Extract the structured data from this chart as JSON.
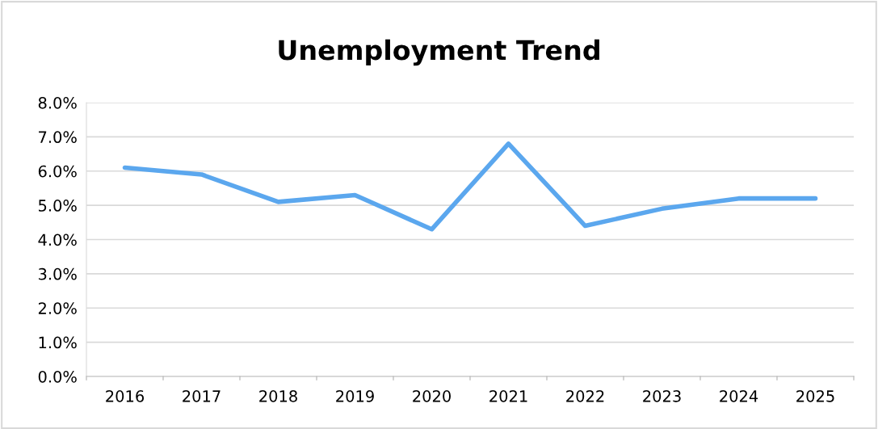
{
  "chart_data": {
    "type": "line",
    "title": "Unemployment Trend",
    "categories": [
      "2016",
      "2017",
      "2018",
      "2019",
      "2020",
      "2021",
      "2022",
      "2023",
      "2024",
      "2025"
    ],
    "series": [
      {
        "color": "#5ba7ee",
        "values": [
          6.1,
          5.9,
          5.1,
          5.3,
          4.3,
          6.8,
          4.4,
          4.9,
          5.2,
          5.2
        ]
      }
    ],
    "ylim": [
      0,
      8
    ],
    "yticks": [
      {
        "value": 0,
        "label": "0.0%"
      },
      {
        "value": 1,
        "label": "1.0%"
      },
      {
        "value": 2,
        "label": "2.0%"
      },
      {
        "value": 3,
        "label": "3.0%"
      },
      {
        "value": 4,
        "label": "4.0%"
      },
      {
        "value": 5,
        "label": "5.0%"
      },
      {
        "value": 6,
        "label": "6.0%"
      },
      {
        "value": 7,
        "label": "7.0%"
      },
      {
        "value": 8,
        "label": "8.0%"
      }
    ],
    "grid": "y",
    "marker": "none",
    "line_style": "solid"
  }
}
